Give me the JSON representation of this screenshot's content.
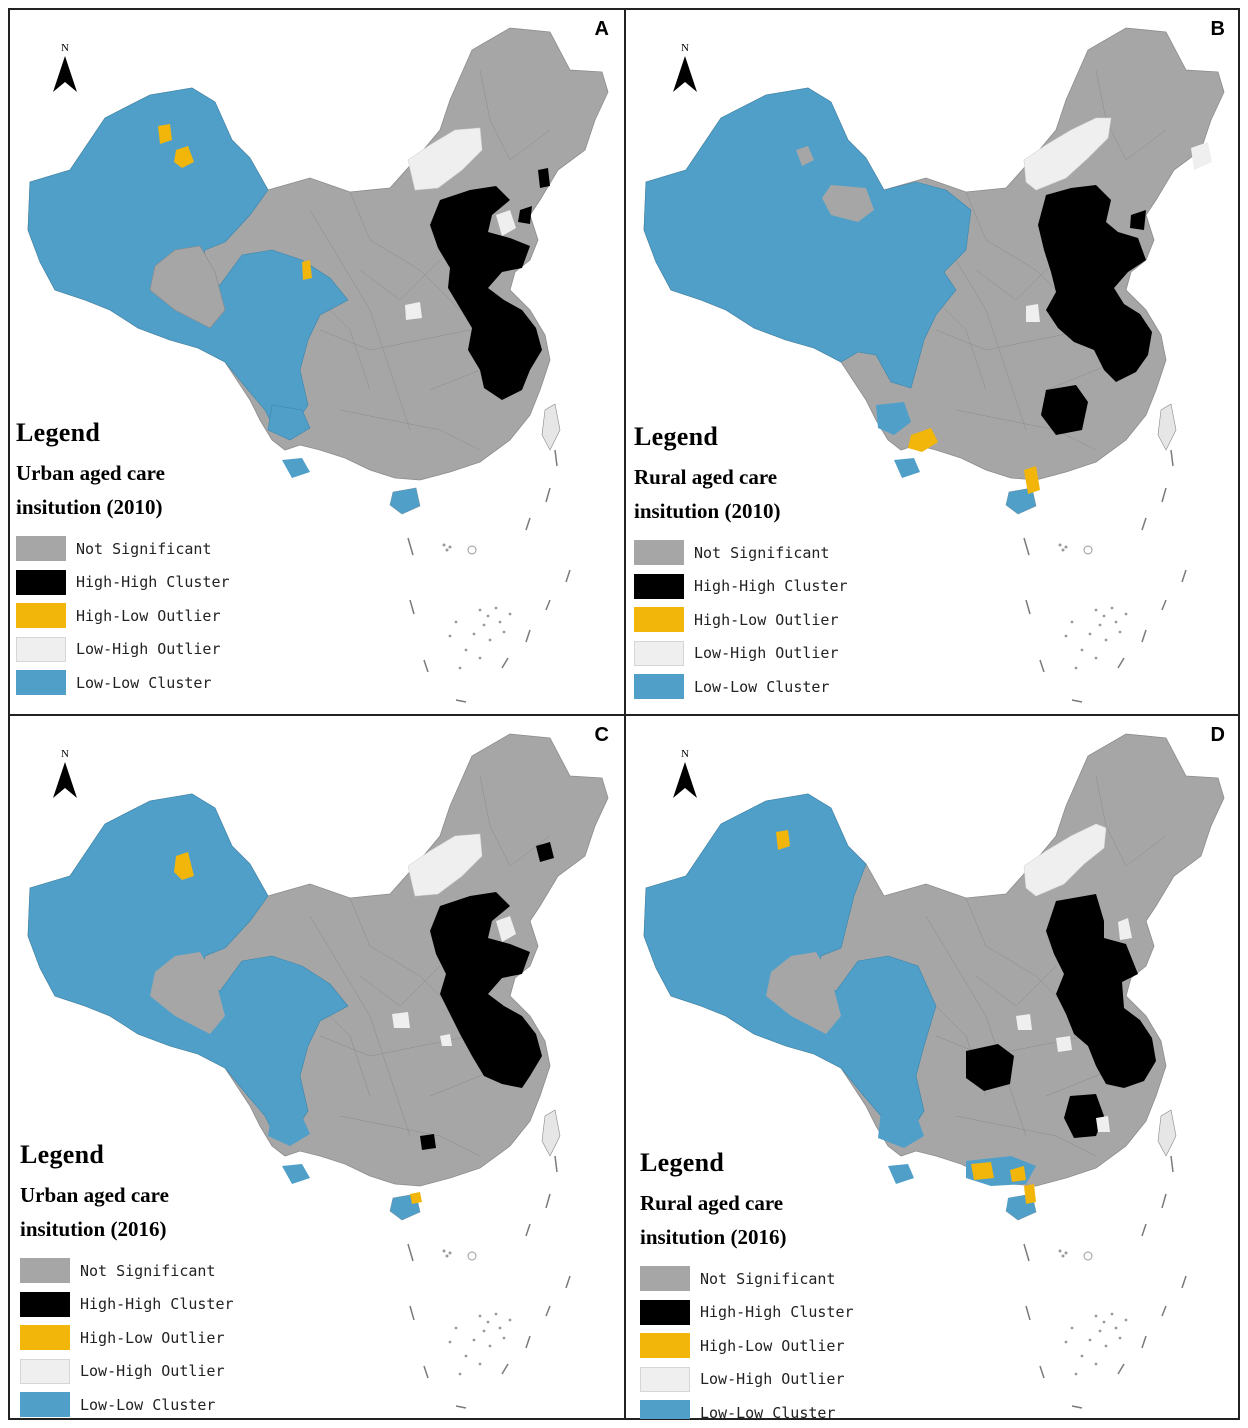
{
  "panels": [
    {
      "label": "A",
      "north": "N",
      "legend_title": "Legend",
      "legend_subtitle": "Urban aged care insitution (2010)",
      "classes": [
        "Not Significant",
        "High-High Cluster",
        "High-Low Outlier",
        "Low-High Outlier",
        "Low-Low Cluster"
      ]
    },
    {
      "label": "B",
      "north": "N",
      "legend_title": "Legend",
      "legend_subtitle": "Rural aged care insitution (2010)",
      "classes": [
        "Not Significant",
        "High-High Cluster",
        "High-Low Outlier",
        "Low-High Outlier",
        "Low-Low Cluster"
      ]
    },
    {
      "label": "C",
      "north": "N",
      "legend_title": "Legend",
      "legend_subtitle": "Urban aged care insitution (2016)",
      "classes": [
        "Not Significant",
        "High-High Cluster",
        "High-Low Outlier",
        "Low-High Outlier",
        "Low-Low Cluster"
      ]
    },
    {
      "label": "D",
      "north": "N",
      "legend_title": "Legend",
      "legend_subtitle": "Rural aged care insitution (2016)",
      "classes": [
        "Not Significant",
        "High-High Cluster",
        "High-Low Outlier",
        "Low-High Outlier",
        "Low-Low Cluster"
      ]
    }
  ],
  "colors": {
    "not_significant": "#a6a6a6",
    "high_high": "#000000",
    "high_low": "#f2b50a",
    "low_high": "#efefef",
    "low_low": "#4f9fc9"
  }
}
